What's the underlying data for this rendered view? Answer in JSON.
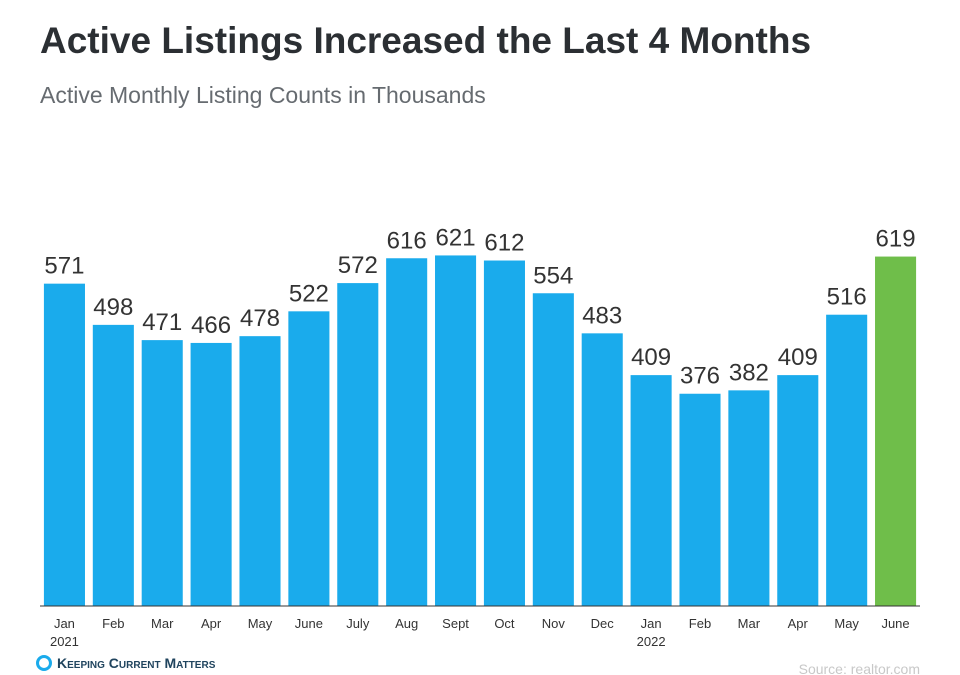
{
  "chart_data": {
    "type": "bar",
    "title": "Active Listings Increased the Last 4 Months",
    "subtitle": "Active Monthly Listing Counts in Thousands",
    "categories": [
      "Jan 2021",
      "Feb",
      "Mar",
      "Apr",
      "May",
      "June",
      "July",
      "Aug",
      "Sept",
      "Oct",
      "Nov",
      "Dec",
      "Jan 2022",
      "Feb",
      "Mar",
      "Apr",
      "May",
      "June"
    ],
    "values": [
      571,
      498,
      471,
      466,
      478,
      522,
      572,
      616,
      621,
      612,
      554,
      483,
      409,
      376,
      382,
      409,
      516,
      619
    ],
    "colors": [
      "#1aabec",
      "#1aabec",
      "#1aabec",
      "#1aabec",
      "#1aabec",
      "#1aabec",
      "#1aabec",
      "#1aabec",
      "#1aabec",
      "#1aabec",
      "#1aabec",
      "#1aabec",
      "#1aabec",
      "#1aabec",
      "#1aabec",
      "#1aabec",
      "#1aabec",
      "#6fbe4a"
    ],
    "ylim": [
      0,
      620
    ],
    "source": "Source: realtor.com",
    "logo": "Keeping Current Matters"
  }
}
